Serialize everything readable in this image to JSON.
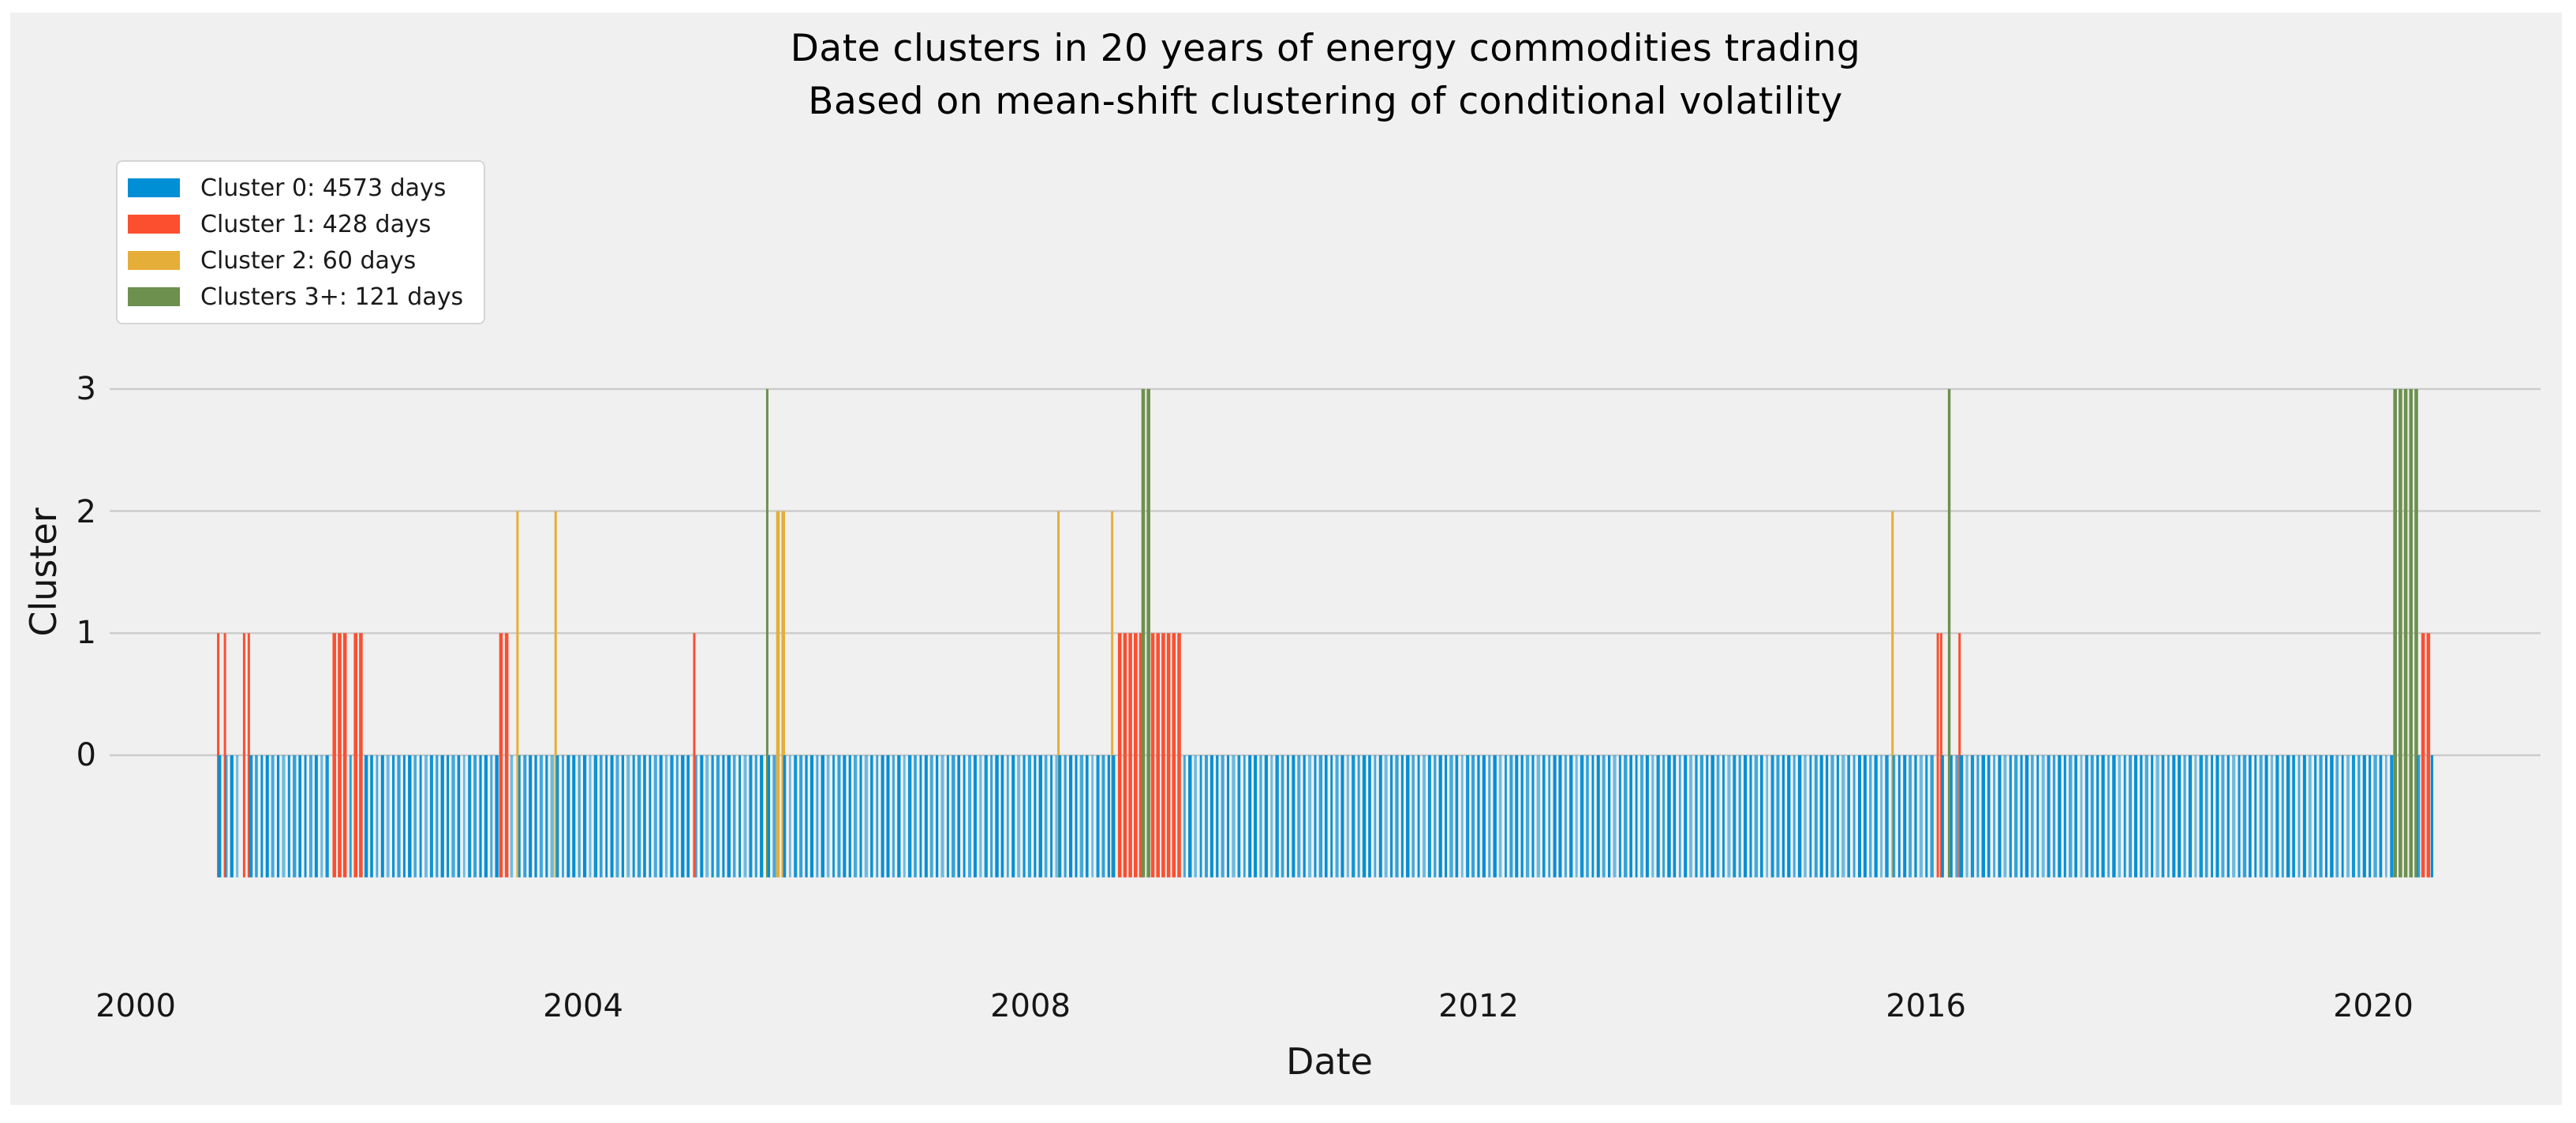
{
  "figure": {
    "background": "#ffffff",
    "panel_color": "#f0f0f0"
  },
  "title": {
    "line1": "Date clusters in 20 years of energy commodities trading",
    "line2": "Based on mean-shift clustering of conditional volatility"
  },
  "legend": {
    "items": [
      {
        "label": "Cluster 0: 4573 days",
        "color": "#008fd5"
      },
      {
        "label": "Cluster 1: 428 days",
        "color": "#fc4f30"
      },
      {
        "label": "Cluster 2: 60 days",
        "color": "#e5ae38"
      },
      {
        "label": "Clusters 3+: 121 days",
        "color": "#6d904f"
      }
    ]
  },
  "axes": {
    "xlabel": "Date",
    "ylabel": "Cluster",
    "grid_color": "#cbcbcb",
    "xticks": [
      {
        "label": "2000",
        "year": 2000
      },
      {
        "label": "2004",
        "year": 2004
      },
      {
        "label": "2008",
        "year": 2008
      },
      {
        "label": "2012",
        "year": 2012
      },
      {
        "label": "2016",
        "year": 2016
      },
      {
        "label": "2020",
        "year": 2020
      }
    ],
    "yticks": [
      {
        "label": "3",
        "value": 3
      },
      {
        "label": "2",
        "value": 2
      },
      {
        "label": "1",
        "value": 1
      },
      {
        "label": "0",
        "value": 0
      }
    ]
  },
  "chart_data": {
    "type": "bar",
    "subtype": "daily-event-vlines",
    "title": "Date clusters in 20 years of energy commodities trading",
    "subtitle": "Based on mean-shift clustering of conditional volatility",
    "xlabel": "Date",
    "ylabel": "Cluster",
    "xlim_years": [
      1999.77,
      2021.5
    ],
    "ylim": [
      -1.5,
      4.5
    ],
    "bar_base": -1,
    "grid": true,
    "legend_position": "upper-left",
    "cluster_colors": {
      "0": "#008fd5",
      "1": "#fc4f30",
      "2": "#e5ae38",
      "3": "#6d904f"
    },
    "cluster_day_counts": {
      "cluster_0": 4573,
      "cluster_1": 428,
      "cluster_2": 60,
      "clusters_3_plus": 121
    },
    "segments": [
      {
        "start": 2000.73,
        "end": 2000.745,
        "cluster": 1
      },
      {
        "start": 2000.75,
        "end": 2000.785,
        "cluster": 0
      },
      {
        "start": 2000.79,
        "end": 2000.805,
        "cluster": 1
      },
      {
        "start": 2000.81,
        "end": 2000.955,
        "cluster": 0
      },
      {
        "start": 2000.96,
        "end": 2000.978,
        "cluster": 1
      },
      {
        "start": 2001.0,
        "end": 2001.022,
        "cluster": 1
      },
      {
        "start": 2001.03,
        "end": 2001.755,
        "cluster": 0
      },
      {
        "start": 2001.76,
        "end": 2001.915,
        "cluster": 1
      },
      {
        "start": 2001.92,
        "end": 2001.945,
        "cluster": 0
      },
      {
        "start": 2001.95,
        "end": 2002.05,
        "cluster": 1
      },
      {
        "start": 2002.06,
        "end": 2003.24,
        "cluster": 0
      },
      {
        "start": 2003.245,
        "end": 2003.285,
        "cluster": 1
      },
      {
        "start": 2003.3,
        "end": 2003.35,
        "cluster": 1
      },
      {
        "start": 2003.36,
        "end": 2003.4,
        "cluster": 0
      },
      {
        "start": 2003.405,
        "end": 2003.42,
        "cluster": 2
      },
      {
        "start": 2003.43,
        "end": 2003.74,
        "cluster": 0
      },
      {
        "start": 2003.745,
        "end": 2003.762,
        "cluster": 2
      },
      {
        "start": 2003.77,
        "end": 2004.975,
        "cluster": 0
      },
      {
        "start": 2004.98,
        "end": 2005.005,
        "cluster": 1
      },
      {
        "start": 2005.01,
        "end": 2005.63,
        "cluster": 0
      },
      {
        "start": 2005.635,
        "end": 2005.655,
        "cluster": 3
      },
      {
        "start": 2005.66,
        "end": 2005.72,
        "cluster": 0
      },
      {
        "start": 2005.725,
        "end": 2005.795,
        "cluster": 2
      },
      {
        "start": 2005.8,
        "end": 2008.235,
        "cluster": 0
      },
      {
        "start": 2008.24,
        "end": 2008.256,
        "cluster": 2
      },
      {
        "start": 2008.26,
        "end": 2008.715,
        "cluster": 0
      },
      {
        "start": 2008.72,
        "end": 2008.736,
        "cluster": 2
      },
      {
        "start": 2008.74,
        "end": 2008.775,
        "cluster": 0
      },
      {
        "start": 2008.78,
        "end": 2008.985,
        "cluster": 1
      },
      {
        "start": 2008.99,
        "end": 2009.07,
        "cluster": 3
      },
      {
        "start": 2009.075,
        "end": 2009.37,
        "cluster": 1
      },
      {
        "start": 2009.375,
        "end": 2015.69,
        "cluster": 0
      },
      {
        "start": 2015.695,
        "end": 2015.712,
        "cluster": 2
      },
      {
        "start": 2015.715,
        "end": 2016.095,
        "cluster": 0
      },
      {
        "start": 2016.1,
        "end": 2016.116,
        "cluster": 1
      },
      {
        "start": 2016.13,
        "end": 2016.146,
        "cluster": 1
      },
      {
        "start": 2016.15,
        "end": 2016.19,
        "cluster": 0
      },
      {
        "start": 2016.195,
        "end": 2016.225,
        "cluster": 3
      },
      {
        "start": 2016.23,
        "end": 2016.285,
        "cluster": 0
      },
      {
        "start": 2016.29,
        "end": 2016.315,
        "cluster": 1
      },
      {
        "start": 2016.32,
        "end": 2020.175,
        "cluster": 0
      },
      {
        "start": 2020.18,
        "end": 2020.4,
        "cluster": 3
      },
      {
        "start": 2020.405,
        "end": 2020.425,
        "cluster": 0
      },
      {
        "start": 2020.43,
        "end": 2020.52,
        "cluster": 1
      },
      {
        "start": 2020.525,
        "end": 2020.55,
        "cluster": 0
      }
    ]
  }
}
